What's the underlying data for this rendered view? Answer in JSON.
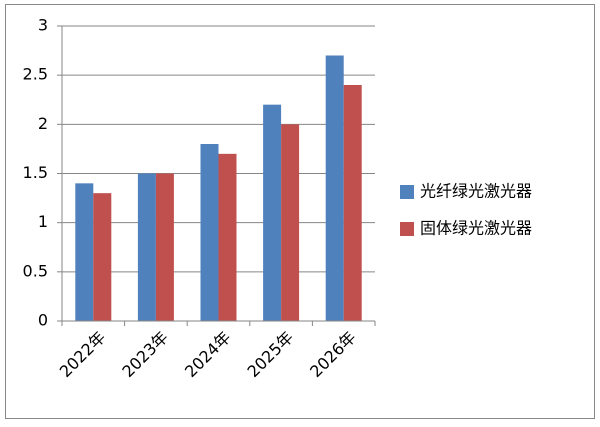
{
  "chart_data": {
    "type": "bar",
    "categories": [
      "2022年",
      "2023年",
      "2024年",
      "2025年",
      "2026年"
    ],
    "series": [
      {
        "name": "光纤绿光激光器",
        "color": "#4f81bd",
        "values": [
          1.4,
          1.5,
          1.8,
          2.2,
          2.7
        ]
      },
      {
        "name": "固体绿光激光器",
        "color": "#c0504d",
        "values": [
          1.3,
          1.5,
          1.7,
          2.0,
          2.4
        ]
      }
    ],
    "ylim": [
      0,
      3
    ],
    "yticks": [
      0,
      0.5,
      1,
      1.5,
      2,
      2.5,
      3
    ],
    "grid": true,
    "legend": "right"
  }
}
